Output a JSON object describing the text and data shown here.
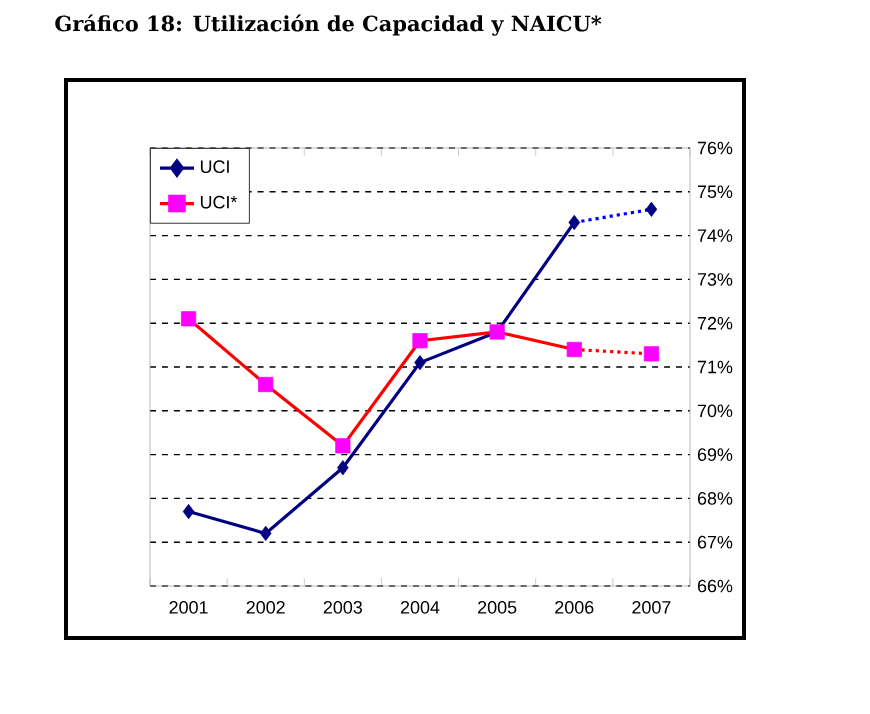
{
  "chart_data": {
    "type": "line",
    "title": "Gráfico 18: Utilización de Capacidad y NAICU*",
    "categories": [
      "2001",
      "2002",
      "2003",
      "2004",
      "2005",
      "2006",
      "2007"
    ],
    "series": [
      {
        "name": "UCI",
        "color": "#000080",
        "colors": [
          "#000080",
          "#000080",
          "#000080",
          "#000080",
          "#000080",
          "#000080",
          null
        ],
        "marker": "diamond",
        "line_style": "solid",
        "values": [
          67.7,
          67.2,
          68.7,
          71.1,
          71.8,
          74.3,
          null
        ]
      },
      {
        "name": "UCI*",
        "color": "#ff0000",
        "colors": [
          "#ff00ff",
          "#ff00ff",
          "#ff00ff",
          "#ff00ff",
          "#ff00ff",
          "#ff00ff",
          null
        ],
        "marker": "square",
        "line_style": "solid",
        "values": [
          72.1,
          70.6,
          69.2,
          71.6,
          71.8,
          71.4,
          null
        ]
      },
      {
        "color": "#0000ff",
        "colors": [
          null,
          null,
          null,
          null,
          null,
          null,
          "#000080"
        ],
        "marker": "diamond",
        "line_style": "dotted",
        "values": [
          null,
          null,
          null,
          null,
          null,
          74.3,
          74.6
        ]
      },
      {
        "color": "#ff0000",
        "colors": [
          null,
          null,
          null,
          null,
          null,
          null,
          "#ff00ff"
        ],
        "marker": "square",
        "line_style": "dotted",
        "values": [
          null,
          null,
          null,
          null,
          null,
          71.4,
          71.3
        ]
      }
    ],
    "ylim": [
      66,
      76
    ],
    "yticks": [
      {
        "value": 66,
        "label": "66%"
      },
      {
        "value": 67,
        "label": "67%"
      },
      {
        "value": 68,
        "label": "68%"
      },
      {
        "value": 69,
        "label": "69%"
      },
      {
        "value": 70,
        "label": "70%"
      },
      {
        "value": 71,
        "label": "71%"
      },
      {
        "value": 72,
        "label": "72%"
      },
      {
        "value": 73,
        "label": "73%"
      },
      {
        "value": 74,
        "label": "74%"
      },
      {
        "value": 75,
        "label": "75%"
      },
      {
        "value": 76,
        "label": "76%"
      }
    ],
    "grid": "y",
    "legend": "top left"
  }
}
